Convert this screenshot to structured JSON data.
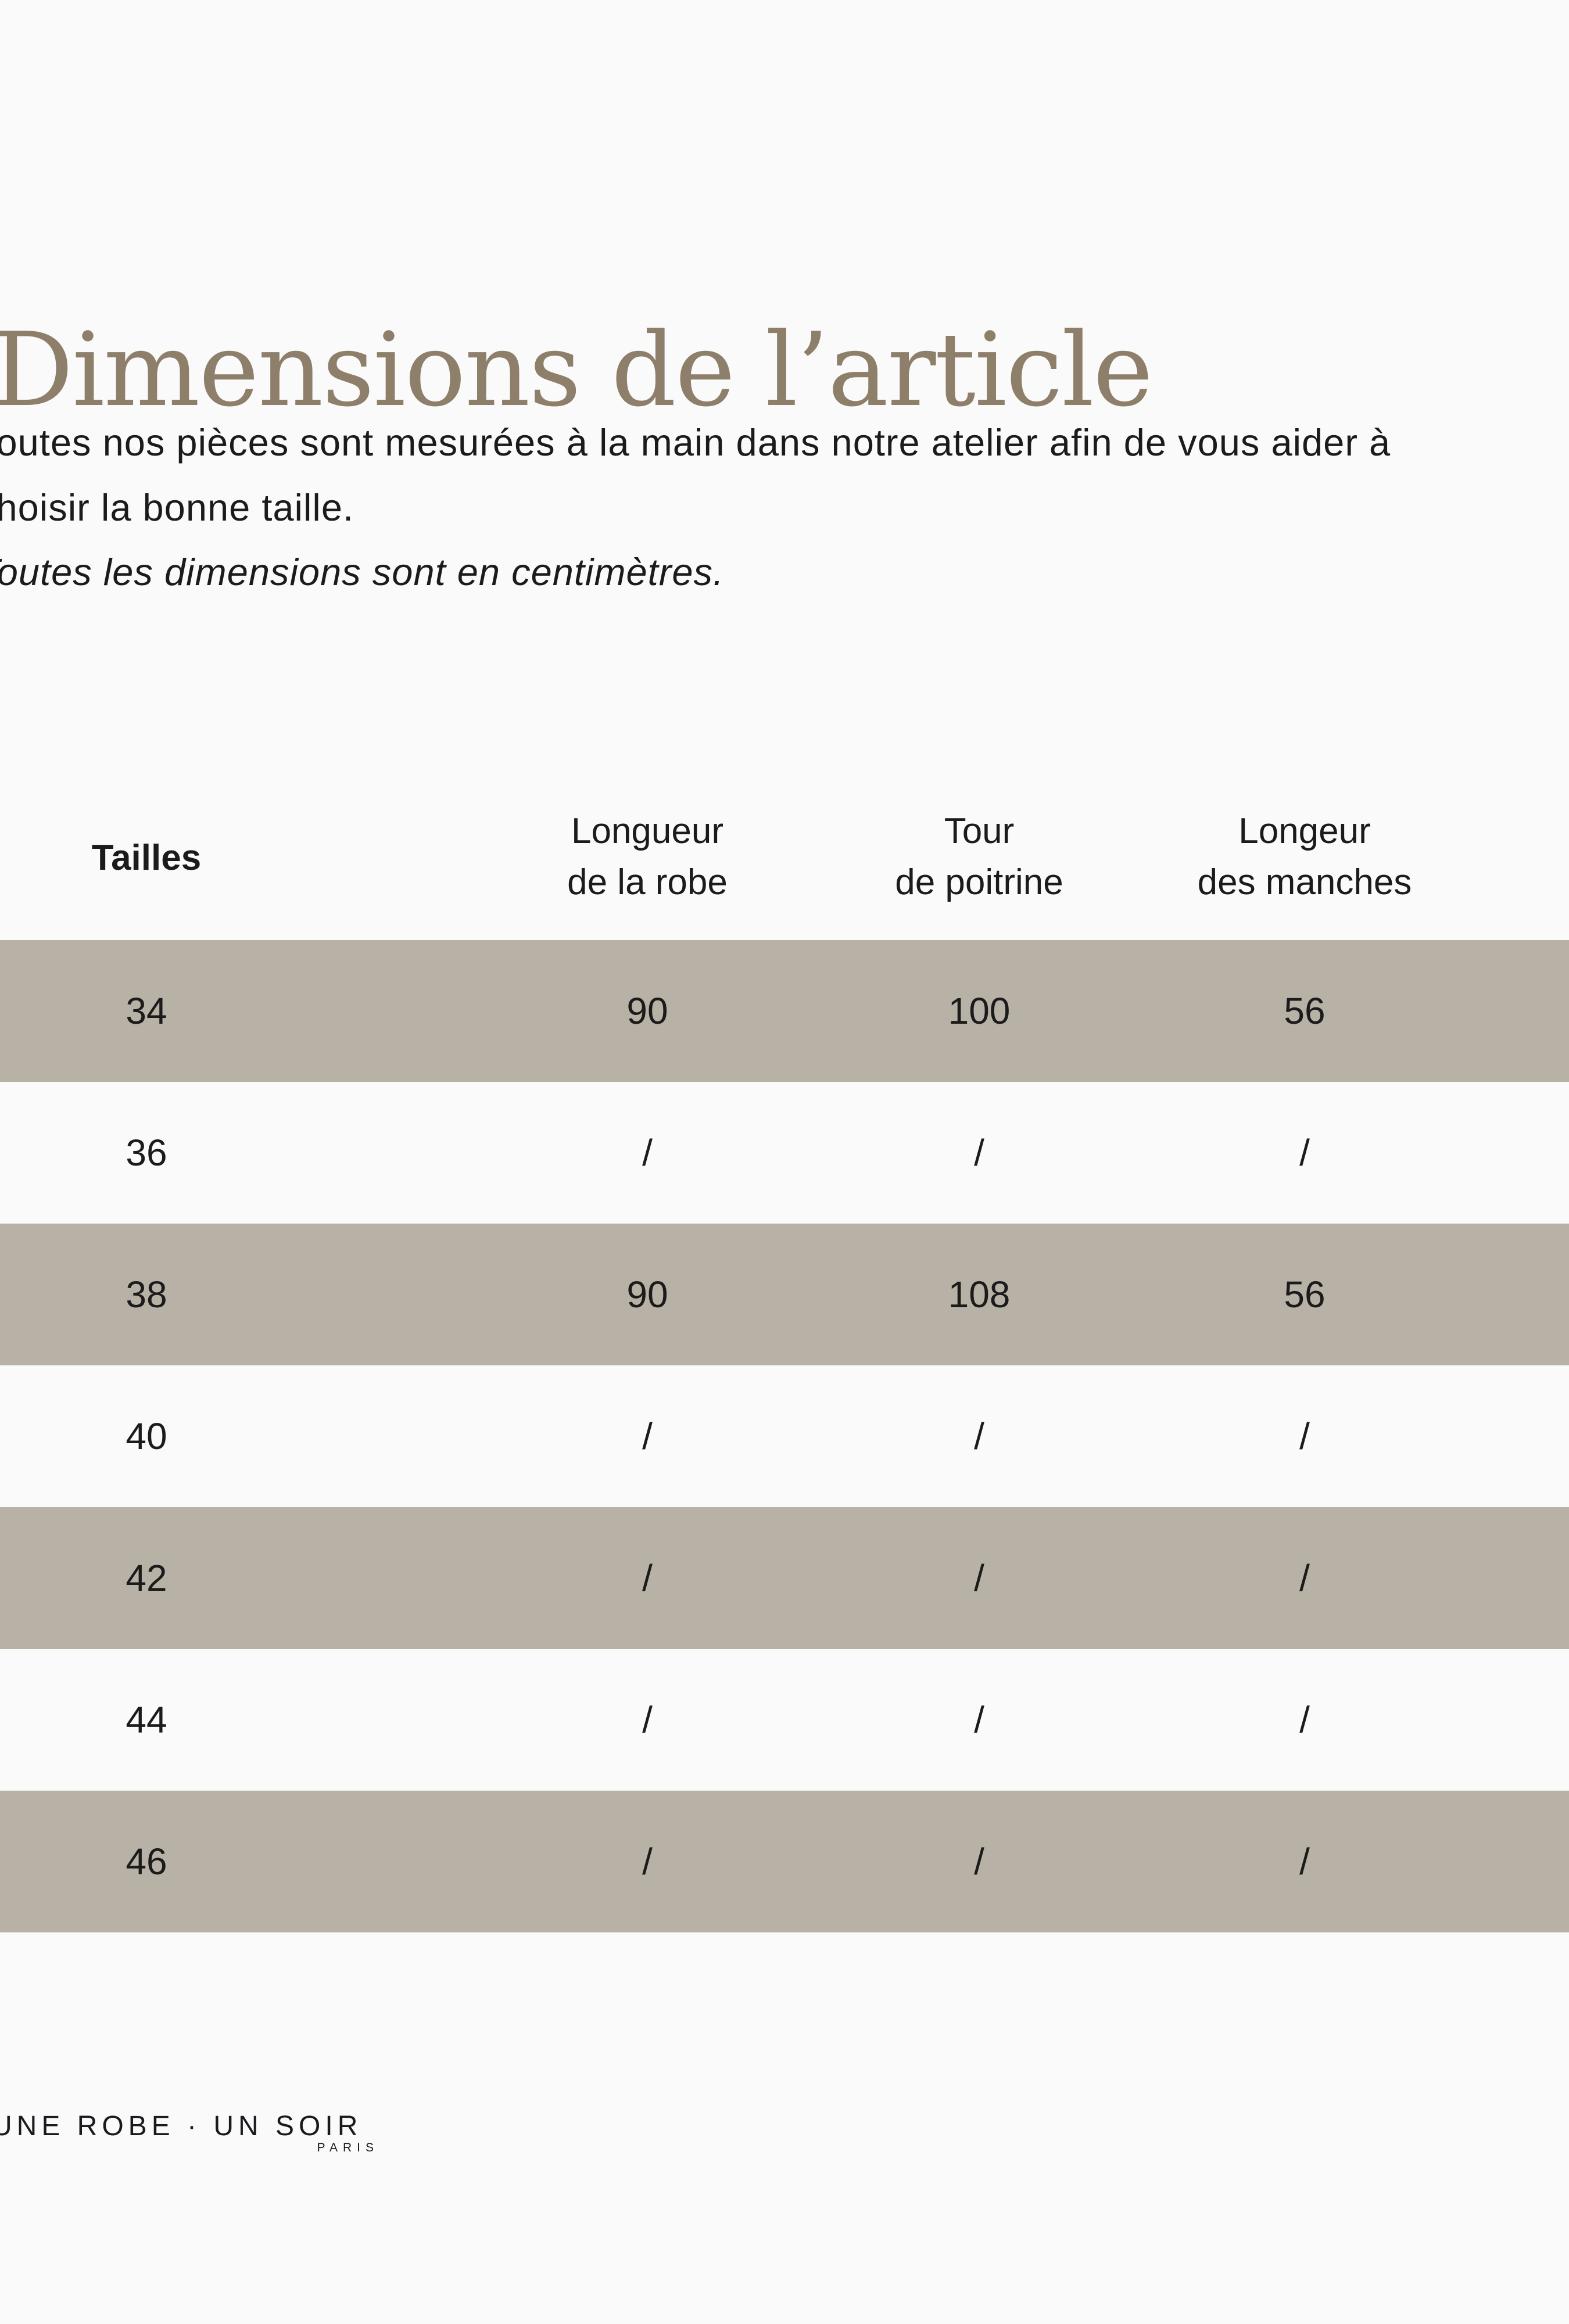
{
  "page": {
    "title": "Dimensions de l’article",
    "intro_line1": "Toutes nos pièces sont mesurées à la main dans notre atelier afin de vous aider à",
    "intro_line2": "choisir la bonne taille.",
    "note": "Toutes les dimensions sont en centimètres."
  },
  "table": {
    "size_header": "Tailles",
    "columns": [
      {
        "line1": "Longueur",
        "line2": "de la robe"
      },
      {
        "line1": "Tour",
        "line2": "de poitrine"
      },
      {
        "line1": "Longeur",
        "line2": "des manches"
      }
    ],
    "rows": [
      {
        "size": "34",
        "values": [
          "90",
          "100",
          "56"
        ],
        "shaded": true
      },
      {
        "size": "36",
        "values": [
          "/",
          "/",
          "/"
        ],
        "shaded": false
      },
      {
        "size": "38",
        "values": [
          "90",
          "108",
          "56"
        ],
        "shaded": true
      },
      {
        "size": "40",
        "values": [
          "/",
          "/",
          "/"
        ],
        "shaded": false
      },
      {
        "size": "42",
        "values": [
          "/",
          "/",
          "/"
        ],
        "shaded": true
      },
      {
        "size": "44",
        "values": [
          "/",
          "/",
          "/"
        ],
        "shaded": false
      },
      {
        "size": "46",
        "values": [
          "/",
          "/",
          "/"
        ],
        "shaded": true
      }
    ]
  },
  "footer": {
    "brand": "UNE ROBE · UN SOIR",
    "brand_city": "PARIS"
  },
  "colors": {
    "background": "#fafafa",
    "band": "#b8b1a5",
    "title": "#8d7f6a",
    "text": "#1b1b1b",
    "brand": "#1a1a1e"
  }
}
